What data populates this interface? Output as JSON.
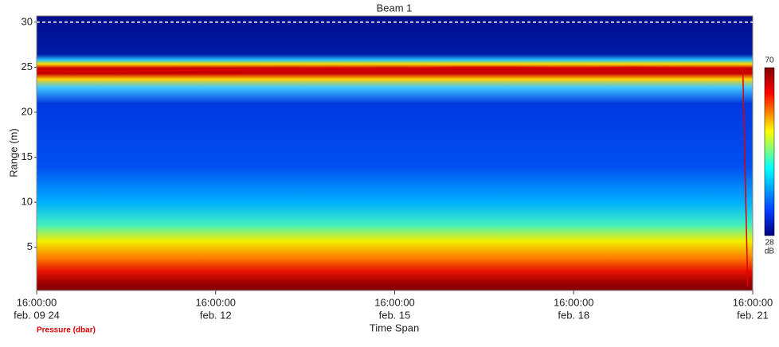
{
  "chart_data": {
    "type": "heatmap",
    "title": "Beam 1",
    "y_label": "Range (m)",
    "x_label": "Time Span",
    "ylim": [
      0.2,
      30.7
    ],
    "yticks": [
      5,
      10,
      15,
      20,
      25,
      30
    ],
    "xlim": [
      "2024-02-09T16:00:00",
      "2024-02-21T16:00:00"
    ],
    "xticks": [
      {
        "value": "2024-02-09T16:00:00",
        "label": [
          "16:00:00",
          "feb. 09 24"
        ]
      },
      {
        "value": "2024-02-12T16:00:00",
        "label": [
          "16:00:00",
          "feb. 12"
        ]
      },
      {
        "value": "2024-02-15T16:00:00",
        "label": [
          "16:00:00",
          "feb. 15"
        ]
      },
      {
        "value": "2024-02-18T16:00:00",
        "label": [
          "16:00:00",
          "feb. 18"
        ]
      },
      {
        "value": "2024-02-21T16:00:00",
        "label": [
          "16:00:00",
          "feb. 21"
        ]
      }
    ],
    "series": [
      {
        "name": "Pressure (dbar)",
        "color": "#e00000",
        "x": [
          "2024-02-09T16:00:00",
          "2024-02-10T16:00:00",
          "2024-02-11T16:00:00",
          "2024-02-12T16:00:00",
          "2024-02-13T16:00:00",
          "2024-02-14T16:00:00",
          "2024-02-15T16:00:00",
          "2024-02-16T16:00:00",
          "2024-02-17T16:00:00",
          "2024-02-18T16:00:00",
          "2024-02-19T16:00:00",
          "2024-02-20T16:00:00",
          "2024-02-21T12:00:00",
          "2024-02-21T14:00:00"
        ],
        "values": [
          24.6,
          24.5,
          24.6,
          24.7,
          24.8,
          24.9,
          24.8,
          25.0,
          25.0,
          24.9,
          25.0,
          24.9,
          24.9,
          0.6
        ]
      }
    ],
    "colorbar": {
      "max": 70,
      "min": 28,
      "max_label": "70",
      "min_label": "28",
      "unit": "dB"
    }
  }
}
